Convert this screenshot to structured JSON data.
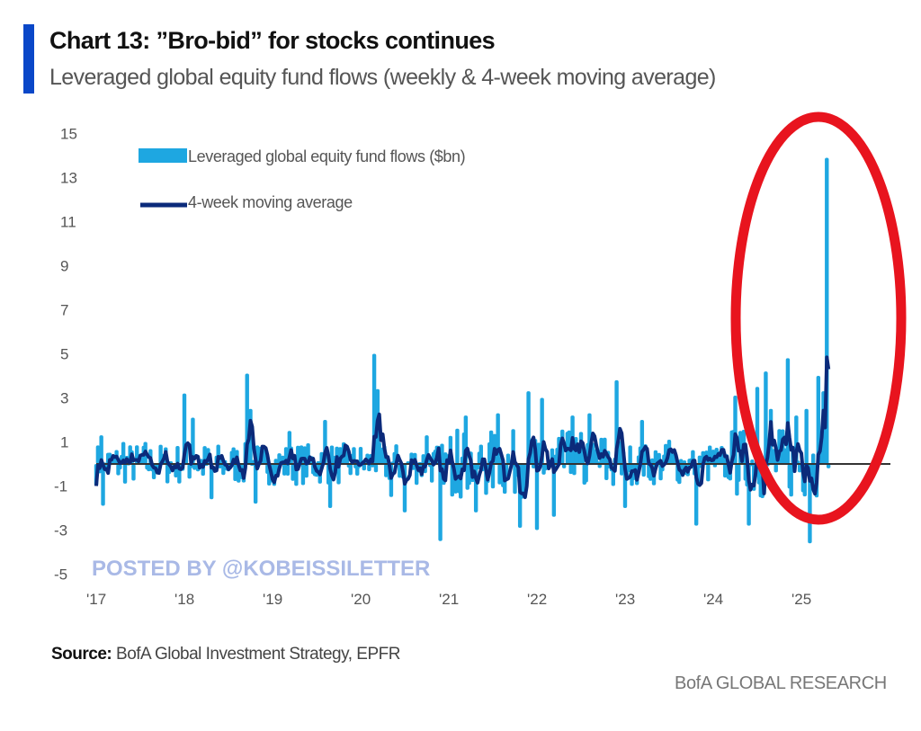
{
  "header": {
    "title": "Chart 13: ”Bro-bid” for stocks continues",
    "subtitle": "Leveraged global equity fund flows (weekly & 4-week moving average)"
  },
  "footer": {
    "source_label": "Source:",
    "source_text": " BofA Global Investment Strategy, EPFR",
    "brand": "BofA GLOBAL RESEARCH"
  },
  "watermark": "POSTED BY @KOBEISSILETTER",
  "annotation": {
    "type": "red-ellipse",
    "highlights": "2024-2025 surge",
    "color": "#e8141e"
  },
  "colors": {
    "accent": "#0a47c8",
    "weekly": "#1ea7e1",
    "moving_average": "#0b2a7a",
    "zero_line": "#333333"
  },
  "chart_data": {
    "type": "bar+line",
    "title": "Chart 13: ”Bro-bid” for stocks continues",
    "subtitle": "Leveraged global equity fund flows (weekly & 4-week moving average)",
    "xlabel": "",
    "ylabel": "",
    "ylim": [
      -5,
      15
    ],
    "yticks": [
      15,
      13,
      11,
      9,
      7,
      5,
      3,
      1,
      -1,
      -3,
      -5
    ],
    "xticks": [
      "'17",
      "'18",
      "'19",
      "'20",
      "'21",
      "'22",
      "'23",
      "'24",
      "'25"
    ],
    "x_start": 2017.0,
    "x_step_weeks": 1,
    "legend": [
      {
        "name": "Leveraged global equity fund flows ($bn)",
        "kind": "bar"
      },
      {
        "name": "4-week moving average",
        "kind": "line"
      }
    ],
    "legend_position": "top-left",
    "grid": false,
    "anchors": [
      {
        "x": 2017.05,
        "y": 1.3
      },
      {
        "x": 2017.08,
        "y": -1.9
      },
      {
        "x": 2017.3,
        "y": 1.0
      },
      {
        "x": 2017.55,
        "y": 1.0
      },
      {
        "x": 2018.0,
        "y": 3.2
      },
      {
        "x": 2018.1,
        "y": 2.1
      },
      {
        "x": 2018.3,
        "y": -1.6
      },
      {
        "x": 2018.72,
        "y": 4.1
      },
      {
        "x": 2018.75,
        "y": 2.5
      },
      {
        "x": 2018.8,
        "y": -1.8
      },
      {
        "x": 2019.2,
        "y": 1.5
      },
      {
        "x": 2019.6,
        "y": 2.0
      },
      {
        "x": 2019.65,
        "y": -2.0
      },
      {
        "x": 2020.15,
        "y": 5.0
      },
      {
        "x": 2020.2,
        "y": 3.4
      },
      {
        "x": 2020.35,
        "y": -1.5
      },
      {
        "x": 2020.5,
        "y": -2.2
      },
      {
        "x": 2020.75,
        "y": 1.3
      },
      {
        "x": 2020.9,
        "y": -3.5
      },
      {
        "x": 2021.1,
        "y": 1.6
      },
      {
        "x": 2021.2,
        "y": 2.2
      },
      {
        "x": 2021.3,
        "y": -2.2
      },
      {
        "x": 2021.55,
        "y": 2.3
      },
      {
        "x": 2021.8,
        "y": -2.9
      },
      {
        "x": 2021.9,
        "y": 3.3
      },
      {
        "x": 2022.0,
        "y": -3.0
      },
      {
        "x": 2022.05,
        "y": 3.0
      },
      {
        "x": 2022.2,
        "y": -2.4
      },
      {
        "x": 2022.4,
        "y": 2.2
      },
      {
        "x": 2022.6,
        "y": 2.3
      },
      {
        "x": 2022.9,
        "y": 3.8
      },
      {
        "x": 2023.0,
        "y": -2.0
      },
      {
        "x": 2023.2,
        "y": 2.0
      },
      {
        "x": 2023.5,
        "y": 1.1
      },
      {
        "x": 2023.8,
        "y": -2.8
      },
      {
        "x": 2024.25,
        "y": 3.1
      },
      {
        "x": 2024.4,
        "y": -2.8
      },
      {
        "x": 2024.5,
        "y": 3.5
      },
      {
        "x": 2024.6,
        "y": 4.2
      },
      {
        "x": 2024.65,
        "y": 2.5
      },
      {
        "x": 2024.85,
        "y": 4.8
      },
      {
        "x": 2024.95,
        "y": 2.2
      },
      {
        "x": 2025.05,
        "y": 2.5
      },
      {
        "x": 2025.1,
        "y": -3.6
      },
      {
        "x": 2025.2,
        "y": 4.0
      },
      {
        "x": 2025.25,
        "y": 3.3
      },
      {
        "x": 2025.29,
        "y": 13.9
      },
      {
        "x": 2025.31,
        "y": -0.2
      }
    ],
    "ma_peak_latest": 4.3,
    "weekly_peak_latest": 13.9
  }
}
